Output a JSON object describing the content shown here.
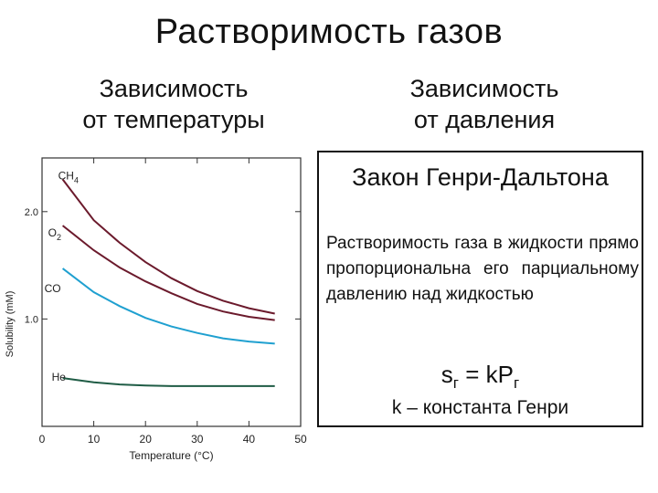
{
  "title": "Растворимость газов",
  "left_heading": [
    "Зависимость",
    "от температуры"
  ],
  "right_heading": [
    "Зависимость",
    "от давления"
  ],
  "law_box": {
    "title": "Закон Генри-Дальтона",
    "text": "Растворимость газа в жидкости прямо пропорциональна его парциальному давлению над жидкостью",
    "formula": {
      "left": "s",
      "left_sub": "г",
      "eq": " = kP",
      "right_sub": "г"
    },
    "constant": "k – константа Генри"
  },
  "colors": {
    "dark_red": "#6b1a2c",
    "blue": "#1fa0d0",
    "green": "#1f5c45",
    "axis": "#333333",
    "box_border": "#111111"
  },
  "chart_data": {
    "type": "line",
    "xlabel": "Temperature (°C)",
    "ylabel": "Solubility (mM)",
    "xlim": [
      0,
      50
    ],
    "ylim": [
      0,
      2.5
    ],
    "x_ticks": [
      "0",
      "10",
      "20",
      "30",
      "40",
      "50"
    ],
    "y_ticks": [
      {
        "value": 1.0,
        "label": "1.0"
      },
      {
        "value": 2.0,
        "label": "2.0"
      }
    ],
    "grid": false,
    "series": [
      {
        "name": "CH4",
        "label_main": "CH",
        "label_sub": "4",
        "color": "#6b1a2c",
        "x": [
          4,
          10,
          15,
          20,
          25,
          30,
          35,
          40,
          45
        ],
        "y": [
          2.3,
          1.92,
          1.71,
          1.53,
          1.38,
          1.26,
          1.17,
          1.1,
          1.05
        ]
      },
      {
        "name": "O2",
        "label_main": "O",
        "label_sub": "2",
        "color": "#6b1a2c",
        "x": [
          4,
          10,
          15,
          20,
          25,
          30,
          35,
          40,
          45
        ],
        "y": [
          1.87,
          1.64,
          1.48,
          1.35,
          1.24,
          1.14,
          1.07,
          1.02,
          0.99
        ]
      },
      {
        "name": "CO",
        "label_main": "CO",
        "label_sub": "",
        "color": "#1fa0d0",
        "x": [
          4,
          10,
          15,
          20,
          25,
          30,
          35,
          40,
          45
        ],
        "y": [
          1.47,
          1.25,
          1.12,
          1.01,
          0.93,
          0.87,
          0.82,
          0.79,
          0.77
        ]
      },
      {
        "name": "He",
        "label_main": "He",
        "label_sub": "",
        "color": "#1f5c45",
        "x": [
          4,
          10,
          15,
          20,
          25,
          30,
          35,
          40,
          45
        ],
        "y": [
          0.45,
          0.41,
          0.39,
          0.38,
          0.375,
          0.375,
          0.375,
          0.375,
          0.375
        ]
      }
    ]
  }
}
